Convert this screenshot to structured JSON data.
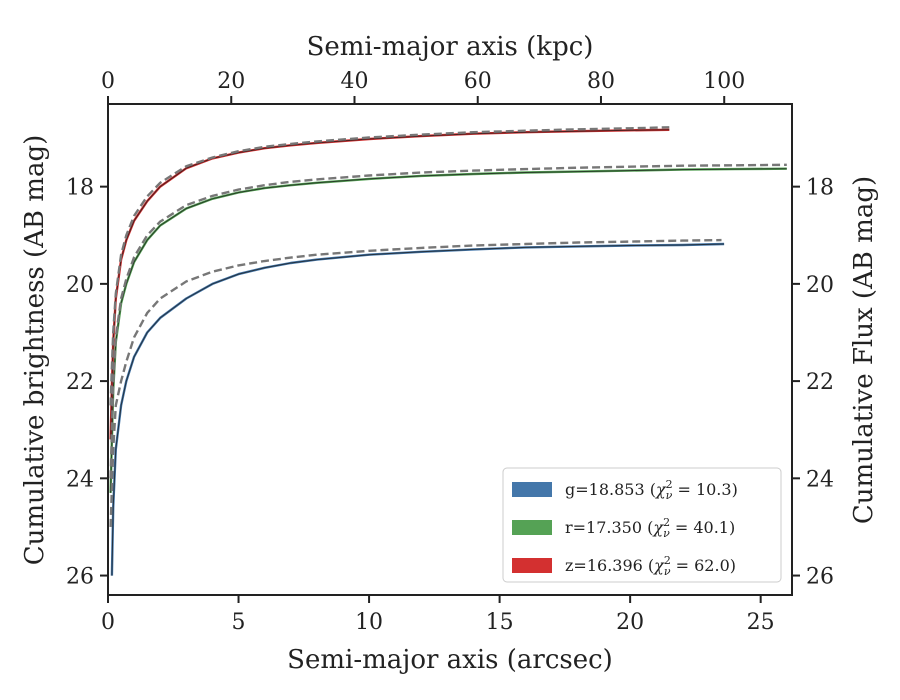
{
  "chart_data": {
    "type": "line",
    "xlabel": "Semi-major axis (arcsec)",
    "xlabel_top": "Semi-major axis (kpc)",
    "ylabel": "Cumulative brightness (AB mag)",
    "ylabel_right": "Cumulative Flux (AB mag)",
    "xlim": [
      0,
      26.2
    ],
    "ylim": [
      26.4,
      16.3
    ],
    "xlim_top": [
      0,
      111
    ],
    "y_inverted": true,
    "grid": false,
    "legend_position": "lower-right",
    "xticks": [
      "0",
      "5",
      "10",
      "15",
      "20",
      "25"
    ],
    "xticks_top": [
      "0",
      "20",
      "40",
      "60",
      "80",
      "100"
    ],
    "yticks": [
      "18",
      "20",
      "22",
      "24",
      "26"
    ],
    "yticks_right": [
      "18",
      "20",
      "22",
      "24",
      "26"
    ],
    "series": [
      {
        "color": "#4477aa",
        "legend": {
          "band": "g",
          "mag": "18.853",
          "chi2": "10.3"
        },
        "x": [
          0.15,
          0.2,
          0.3,
          0.5,
          0.7,
          1.0,
          1.5,
          2.0,
          3.0,
          4.0,
          5.0,
          6.0,
          7.0,
          8.0,
          10.0,
          12.0,
          14.0,
          16.0,
          18.0,
          20.0,
          22.0,
          23.6
        ],
        "y": [
          26.0,
          24.6,
          23.4,
          22.5,
          22.0,
          21.5,
          21.0,
          20.7,
          20.3,
          20.0,
          19.8,
          19.67,
          19.57,
          19.5,
          19.4,
          19.34,
          19.29,
          19.25,
          19.23,
          19.21,
          19.2,
          19.18
        ]
      },
      {
        "color": "#55a255",
        "legend": {
          "band": "r",
          "mag": "17.350",
          "chi2": "40.1"
        },
        "x": [
          0.1,
          0.15,
          0.2,
          0.3,
          0.5,
          0.7,
          1.0,
          1.5,
          2.0,
          3.0,
          4.0,
          5.0,
          6.0,
          7.0,
          8.0,
          10.0,
          12.0,
          14.0,
          16.0,
          18.0,
          20.0,
          22.0,
          24.0,
          26.0
        ],
        "y": [
          24.3,
          23.2,
          22.2,
          21.2,
          20.4,
          20.0,
          19.55,
          19.1,
          18.8,
          18.45,
          18.25,
          18.12,
          18.03,
          17.97,
          17.92,
          17.84,
          17.78,
          17.74,
          17.71,
          17.69,
          17.67,
          17.65,
          17.64,
          17.63
        ]
      },
      {
        "color": "#d33030",
        "legend": {
          "band": "z",
          "mag": "16.396",
          "chi2": "62.0"
        },
        "x": [
          0.1,
          0.15,
          0.2,
          0.3,
          0.5,
          0.7,
          1.0,
          1.5,
          2.0,
          3.0,
          4.0,
          5.0,
          6.0,
          7.0,
          8.0,
          10.0,
          12.0,
          14.0,
          16.0,
          18.0,
          20.0,
          21.5
        ],
        "y": [
          23.2,
          22.1,
          21.2,
          20.3,
          19.5,
          19.1,
          18.7,
          18.3,
          18.0,
          17.62,
          17.42,
          17.3,
          17.21,
          17.15,
          17.1,
          17.02,
          16.96,
          16.91,
          16.88,
          16.86,
          16.84,
          16.83
        ]
      }
    ],
    "model_series": [
      {
        "color": "#777777",
        "x": [
          0.1,
          0.15,
          0.2,
          0.3,
          0.5,
          0.7,
          1.0,
          1.5,
          2.0,
          3.0,
          4.0,
          5.0,
          6.0,
          7.0,
          8.0,
          10.0,
          12.0,
          14.0,
          16.0,
          18.0,
          20.0,
          22.0,
          23.5
        ],
        "y": [
          25.0,
          24.2,
          23.4,
          22.5,
          22.0,
          21.6,
          21.1,
          20.6,
          20.3,
          19.95,
          19.75,
          19.62,
          19.53,
          19.46,
          19.4,
          19.32,
          19.26,
          19.21,
          19.18,
          19.15,
          19.13,
          19.11,
          19.1
        ]
      },
      {
        "color": "#777777",
        "x": [
          0.1,
          0.15,
          0.2,
          0.3,
          0.5,
          0.7,
          1.0,
          1.5,
          2.0,
          3.0,
          4.0,
          5.0,
          6.0,
          7.0,
          8.0,
          10.0,
          12.0,
          14.0,
          16.0,
          18.0,
          20.0,
          22.0,
          24.0,
          26.0
        ],
        "y": [
          24.0,
          23.0,
          22.1,
          21.1,
          20.3,
          19.9,
          19.45,
          19.0,
          18.72,
          18.38,
          18.19,
          18.06,
          17.97,
          17.9,
          17.85,
          17.77,
          17.71,
          17.67,
          17.64,
          17.61,
          17.59,
          17.57,
          17.56,
          17.55
        ]
      },
      {
        "color": "#777777",
        "x": [
          0.1,
          0.15,
          0.2,
          0.3,
          0.5,
          0.7,
          1.0,
          1.5,
          2.0,
          3.0,
          4.0,
          5.0,
          6.0,
          7.0,
          8.0,
          10.0,
          12.0,
          14.0,
          16.0,
          18.0,
          20.0,
          21.5
        ],
        "y": [
          22.5,
          21.7,
          21.0,
          20.2,
          19.4,
          19.0,
          18.6,
          18.2,
          17.92,
          17.58,
          17.4,
          17.27,
          17.18,
          17.12,
          17.07,
          16.99,
          16.93,
          16.88,
          16.85,
          16.82,
          16.8,
          16.78
        ]
      }
    ]
  }
}
